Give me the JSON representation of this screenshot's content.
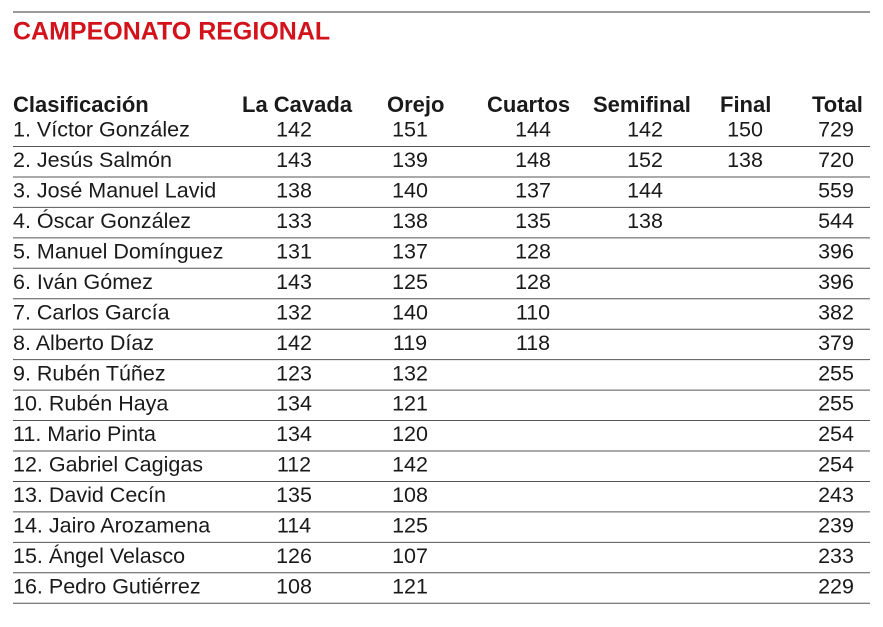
{
  "title": "CAMPEONATO REGIONAL",
  "table": {
    "header": [
      "Clasificación",
      "La Cavada",
      "Orejo",
      "Cuartos",
      "Semifinal",
      "Final",
      "Total"
    ],
    "rows": [
      [
        "1. Víctor González",
        142,
        151,
        144,
        142,
        150,
        729
      ],
      [
        "2. Jesús Salmón",
        143,
        139,
        148,
        152,
        138,
        720
      ],
      [
        "3. José Manuel Lavid",
        138,
        140,
        137,
        144,
        null,
        559
      ],
      [
        "4. Óscar González",
        133,
        138,
        135,
        138,
        null,
        544
      ],
      [
        "5. Manuel Domínguez",
        131,
        137,
        128,
        null,
        null,
        396
      ],
      [
        "6. Iván Gómez",
        143,
        125,
        128,
        null,
        null,
        396
      ],
      [
        "7. Carlos García",
        132,
        140,
        110,
        null,
        null,
        382
      ],
      [
        "8. Alberto Díaz",
        142,
        119,
        118,
        null,
        null,
        379
      ],
      [
        "9. Rubén Túñez",
        123,
        132,
        null,
        null,
        null,
        255
      ],
      [
        "10. Rubén Haya",
        134,
        121,
        null,
        null,
        null,
        255
      ],
      [
        "11. Mario Pinta",
        134,
        120,
        null,
        null,
        null,
        254
      ],
      [
        "12. Gabriel Cagigas",
        112,
        142,
        null,
        null,
        null,
        254
      ],
      [
        "13. David Cecín",
        135,
        108,
        null,
        null,
        null,
        243
      ],
      [
        "14. Jairo Arozamena",
        114,
        125,
        null,
        null,
        null,
        239
      ],
      [
        "15. Ángel Velasco",
        126,
        107,
        null,
        null,
        null,
        233
      ],
      [
        "16. Pedro Gutiérrez",
        108,
        121,
        null,
        null,
        null,
        229
      ]
    ]
  }
}
